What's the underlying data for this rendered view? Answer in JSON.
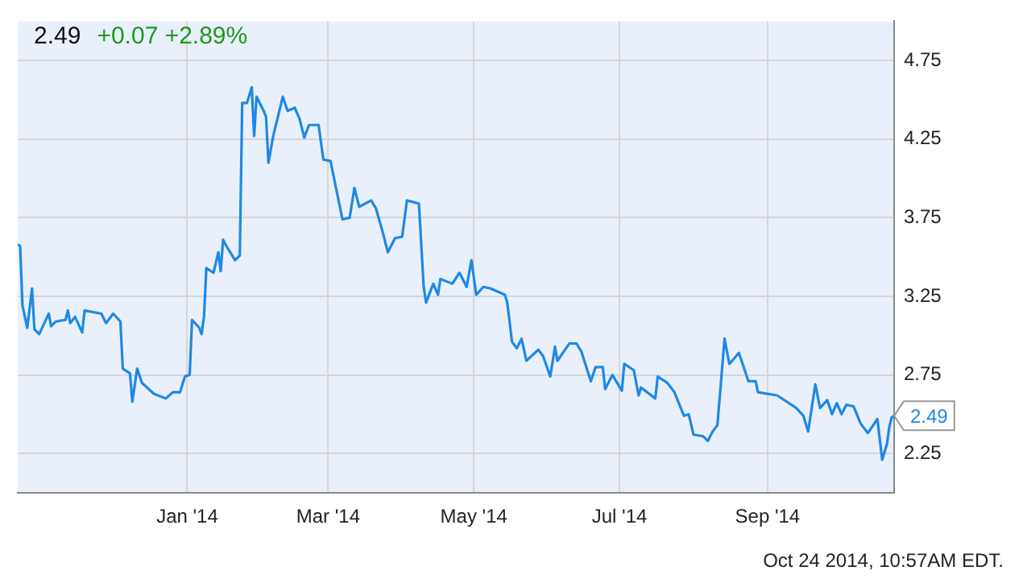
{
  "chart_data": {
    "type": "line",
    "title": "2.49",
    "subtitle": "+0.07 +2.89%",
    "x": [
      "2013-10-22",
      "2013-10-23",
      "2013-10-24",
      "2013-10-26",
      "2013-10-28",
      "2013-10-29",
      "2013-10-31",
      "2013-11-04",
      "2013-11-05",
      "2013-11-07",
      "2013-11-11",
      "2013-11-12",
      "2013-11-13",
      "2013-11-15",
      "2013-11-18",
      "2013-11-19",
      "2013-11-26",
      "2013-11-28",
      "2013-12-01",
      "2013-12-04",
      "2013-12-05",
      "2013-12-08",
      "2013-12-09",
      "2013-12-11",
      "2013-12-13",
      "2013-12-18",
      "2013-12-23",
      "2013-12-26",
      "2013-12-29",
      "2013-12-31",
      "2014-01-02",
      "2014-01-03",
      "2014-01-06",
      "2014-01-07",
      "2014-01-08",
      "2014-01-09",
      "2014-01-12",
      "2014-01-14",
      "2014-01-15",
      "2014-01-16",
      "2014-01-17",
      "2014-01-21",
      "2014-01-23",
      "2014-01-24",
      "2014-01-26",
      "2014-01-28",
      "2014-01-29",
      "2014-01-30",
      "2014-02-02",
      "2014-02-03",
      "2014-02-04",
      "2014-02-06",
      "2014-02-10",
      "2014-02-12",
      "2014-02-15",
      "2014-02-17",
      "2014-02-19",
      "2014-02-21",
      "2014-02-25",
      "2014-02-27",
      "2014-03-02",
      "2014-03-04",
      "2014-03-07",
      "2014-03-10",
      "2014-03-12",
      "2014-03-14",
      "2014-03-19",
      "2014-03-21",
      "2014-03-24",
      "2014-03-26",
      "2014-03-29",
      "2014-04-01",
      "2014-04-03",
      "2014-04-08",
      "2014-04-10",
      "2014-04-11",
      "2014-04-14",
      "2014-04-16",
      "2014-04-17",
      "2014-04-22",
      "2014-04-25",
      "2014-04-28",
      "2014-04-30",
      "2014-05-02",
      "2014-05-05",
      "2014-05-08",
      "2014-05-14",
      "2014-05-15",
      "2014-05-17",
      "2014-05-19",
      "2014-05-21",
      "2014-05-23",
      "2014-05-28",
      "2014-05-30",
      "2014-06-02",
      "2014-06-04",
      "2014-06-05",
      "2014-06-10",
      "2014-06-13",
      "2014-06-15",
      "2014-06-19",
      "2014-06-21",
      "2014-06-24",
      "2014-06-25",
      "2014-06-28",
      "2014-07-02",
      "2014-07-03",
      "2014-07-07",
      "2014-07-09",
      "2014-07-10",
      "2014-07-16",
      "2014-07-17",
      "2014-07-21",
      "2014-07-24",
      "2014-07-28",
      "2014-07-30",
      "2014-08-01",
      "2014-08-05",
      "2014-08-07",
      "2014-08-09",
      "2014-08-11",
      "2014-08-14",
      "2014-08-16",
      "2014-08-20",
      "2014-08-24",
      "2014-08-27",
      "2014-08-28",
      "2014-09-05",
      "2014-09-09",
      "2014-09-13",
      "2014-09-16",
      "2014-09-18",
      "2014-09-21",
      "2014-09-23",
      "2014-09-26",
      "2014-09-28",
      "2014-09-30",
      "2014-10-02",
      "2014-10-04",
      "2014-10-07",
      "2014-10-10",
      "2014-10-13",
      "2014-10-17",
      "2014-10-19",
      "2014-10-21",
      "2014-10-22",
      "2014-10-23",
      "2014-10-24"
    ],
    "series": [
      {
        "color": "#1e88e5",
        "values": [
          3.58,
          3.57,
          3.19,
          3.05,
          3.3,
          3.04,
          3.01,
          3.14,
          3.06,
          3.09,
          3.1,
          3.16,
          3.08,
          3.12,
          3.02,
          3.16,
          3.14,
          3.08,
          3.14,
          3.09,
          2.79,
          2.76,
          2.58,
          2.79,
          2.7,
          2.63,
          2.6,
          2.64,
          2.64,
          2.74,
          2.75,
          3.1,
          3.05,
          3.01,
          3.12,
          3.43,
          3.4,
          3.53,
          3.41,
          3.61,
          3.58,
          3.48,
          3.51,
          4.48,
          4.48,
          4.58,
          4.27,
          4.52,
          4.43,
          4.39,
          4.1,
          4.27,
          4.52,
          4.43,
          4.45,
          4.38,
          4.26,
          4.34,
          4.34,
          4.12,
          4.11,
          3.96,
          3.74,
          3.75,
          3.94,
          3.82,
          3.86,
          3.81,
          3.65,
          3.53,
          3.62,
          3.63,
          3.86,
          3.84,
          3.31,
          3.21,
          3.33,
          3.26,
          3.36,
          3.33,
          3.4,
          3.31,
          3.48,
          3.26,
          3.31,
          3.3,
          3.26,
          3.21,
          2.96,
          2.92,
          2.98,
          2.84,
          2.91,
          2.87,
          2.74,
          2.93,
          2.84,
          2.95,
          2.95,
          2.9,
          2.71,
          2.8,
          2.8,
          2.66,
          2.75,
          2.65,
          2.82,
          2.78,
          2.62,
          2.67,
          2.6,
          2.74,
          2.7,
          2.64,
          2.49,
          2.5,
          2.37,
          2.36,
          2.33,
          2.39,
          2.43,
          2.98,
          2.82,
          2.89,
          2.71,
          2.71,
          2.64,
          2.62,
          2.58,
          2.54,
          2.49,
          2.39,
          2.69,
          2.54,
          2.59,
          2.5,
          2.57,
          2.5,
          2.56,
          2.55,
          2.44,
          2.38,
          2.47,
          2.21,
          2.31,
          2.42,
          2.48,
          2.49
        ]
      }
    ],
    "xlim": [
      "2013-10-22",
      "2014-10-24"
    ],
    "xticks": [
      {
        "value": "2014-01-01",
        "label": "Jan '14"
      },
      {
        "value": "2014-03-01",
        "label": "Mar '14"
      },
      {
        "value": "2014-05-01",
        "label": "May '14"
      },
      {
        "value": "2014-07-01",
        "label": "Jul '14"
      },
      {
        "value": "2014-09-01",
        "label": "Sep '14"
      }
    ],
    "ylim": [
      2,
      5
    ],
    "yticks": [
      2.25,
      2.75,
      3.25,
      3.75,
      4.25,
      4.75
    ],
    "grid": true,
    "marker": "none",
    "line_style": "solid",
    "annotations": [
      {
        "text": "2.49",
        "x": "2014-10-24",
        "y": 2.49
      },
      "Oct 24 2014, 10:57AM EDT."
    ]
  }
}
